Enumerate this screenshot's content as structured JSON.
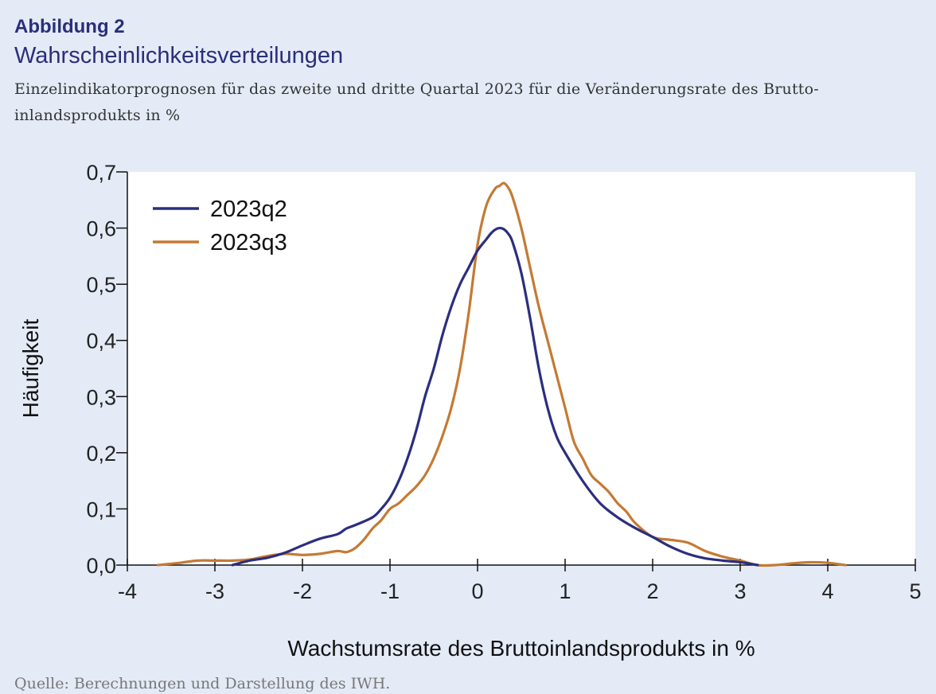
{
  "header": {
    "figure_label": "Abbildung 2",
    "title": "Wahrscheinlichkeitsverteilungen",
    "subtitle": "Einzelindikatorprognosen für das zweite und dritte Quartal 2023 für die Veränderungsrate des Brutto­inlandsprodukts in %"
  },
  "footer": {
    "source": "Quelle: Berechnungen und Darstellung des IWH."
  },
  "chart_data": {
    "type": "line",
    "xlabel": "Wachstumsrate des Bruttoinlandsprodukts in %",
    "ylabel": "Häufigkeit",
    "xlim": [
      -4,
      5
    ],
    "ylim": [
      0,
      0.7
    ],
    "xticks": [
      -4,
      -3,
      -2,
      -1,
      0,
      1,
      2,
      3,
      4,
      5
    ],
    "xtick_labels": [
      "-4",
      "-3",
      "-2",
      "-1",
      "0",
      "1",
      "2",
      "3",
      "4",
      "5"
    ],
    "yticks": [
      0,
      0.1,
      0.2,
      0.3,
      0.4,
      0.5,
      0.6,
      0.7
    ],
    "ytick_labels": [
      "0,0",
      "0,1",
      "0,2",
      "0,3",
      "0,4",
      "0,5",
      "0,6",
      "0,7"
    ],
    "grid": false,
    "legend_position": "top-left",
    "series": [
      {
        "name": "2023q2",
        "color": "#2b2e7e",
        "x": [
          -2.8,
          -2.6,
          -2.4,
          -2.2,
          -2.0,
          -1.8,
          -1.6,
          -1.5,
          -1.4,
          -1.2,
          -1.1,
          -1.0,
          -0.9,
          -0.8,
          -0.7,
          -0.6,
          -0.5,
          -0.4,
          -0.3,
          -0.2,
          -0.1,
          0.0,
          0.1,
          0.15,
          0.2,
          0.25,
          0.3,
          0.35,
          0.4,
          0.5,
          0.6,
          0.7,
          0.8,
          0.9,
          1.0,
          1.2,
          1.4,
          1.6,
          1.8,
          2.0,
          2.2,
          2.4,
          2.6,
          2.8,
          3.0,
          3.2
        ],
        "y": [
          0.0,
          0.008,
          0.013,
          0.022,
          0.035,
          0.047,
          0.055,
          0.065,
          0.071,
          0.085,
          0.1,
          0.12,
          0.15,
          0.19,
          0.24,
          0.3,
          0.35,
          0.41,
          0.46,
          0.5,
          0.53,
          0.56,
          0.58,
          0.59,
          0.597,
          0.6,
          0.598,
          0.59,
          0.575,
          0.52,
          0.44,
          0.35,
          0.28,
          0.23,
          0.2,
          0.15,
          0.11,
          0.085,
          0.066,
          0.05,
          0.033,
          0.02,
          0.012,
          0.008,
          0.005,
          0.0
        ]
      },
      {
        "name": "2023q3",
        "color": "#c47a34",
        "x": [
          -3.65,
          -3.4,
          -3.2,
          -3.0,
          -2.8,
          -2.6,
          -2.4,
          -2.2,
          -2.0,
          -1.8,
          -1.6,
          -1.5,
          -1.4,
          -1.3,
          -1.2,
          -1.1,
          -1.0,
          -0.9,
          -0.8,
          -0.7,
          -0.6,
          -0.5,
          -0.4,
          -0.3,
          -0.2,
          -0.1,
          0.0,
          0.1,
          0.2,
          0.25,
          0.3,
          0.35,
          0.4,
          0.5,
          0.6,
          0.7,
          0.8,
          0.9,
          1.0,
          1.1,
          1.2,
          1.3,
          1.4,
          1.5,
          1.6,
          1.7,
          1.8,
          2.0,
          2.2,
          2.4,
          2.6,
          2.8,
          3.0,
          3.2,
          3.4,
          3.6,
          3.8,
          4.0,
          4.2
        ],
        "y": [
          0.0,
          0.004,
          0.008,
          0.008,
          0.008,
          0.01,
          0.016,
          0.02,
          0.018,
          0.02,
          0.025,
          0.023,
          0.03,
          0.045,
          0.065,
          0.08,
          0.1,
          0.11,
          0.125,
          0.14,
          0.16,
          0.19,
          0.23,
          0.28,
          0.35,
          0.45,
          0.57,
          0.64,
          0.67,
          0.675,
          0.68,
          0.672,
          0.655,
          0.6,
          0.53,
          0.46,
          0.4,
          0.34,
          0.28,
          0.22,
          0.19,
          0.16,
          0.145,
          0.13,
          0.11,
          0.095,
          0.075,
          0.05,
          0.045,
          0.04,
          0.025,
          0.015,
          0.008,
          0.0,
          0.0,
          0.003,
          0.005,
          0.004,
          0.0
        ]
      }
    ]
  }
}
